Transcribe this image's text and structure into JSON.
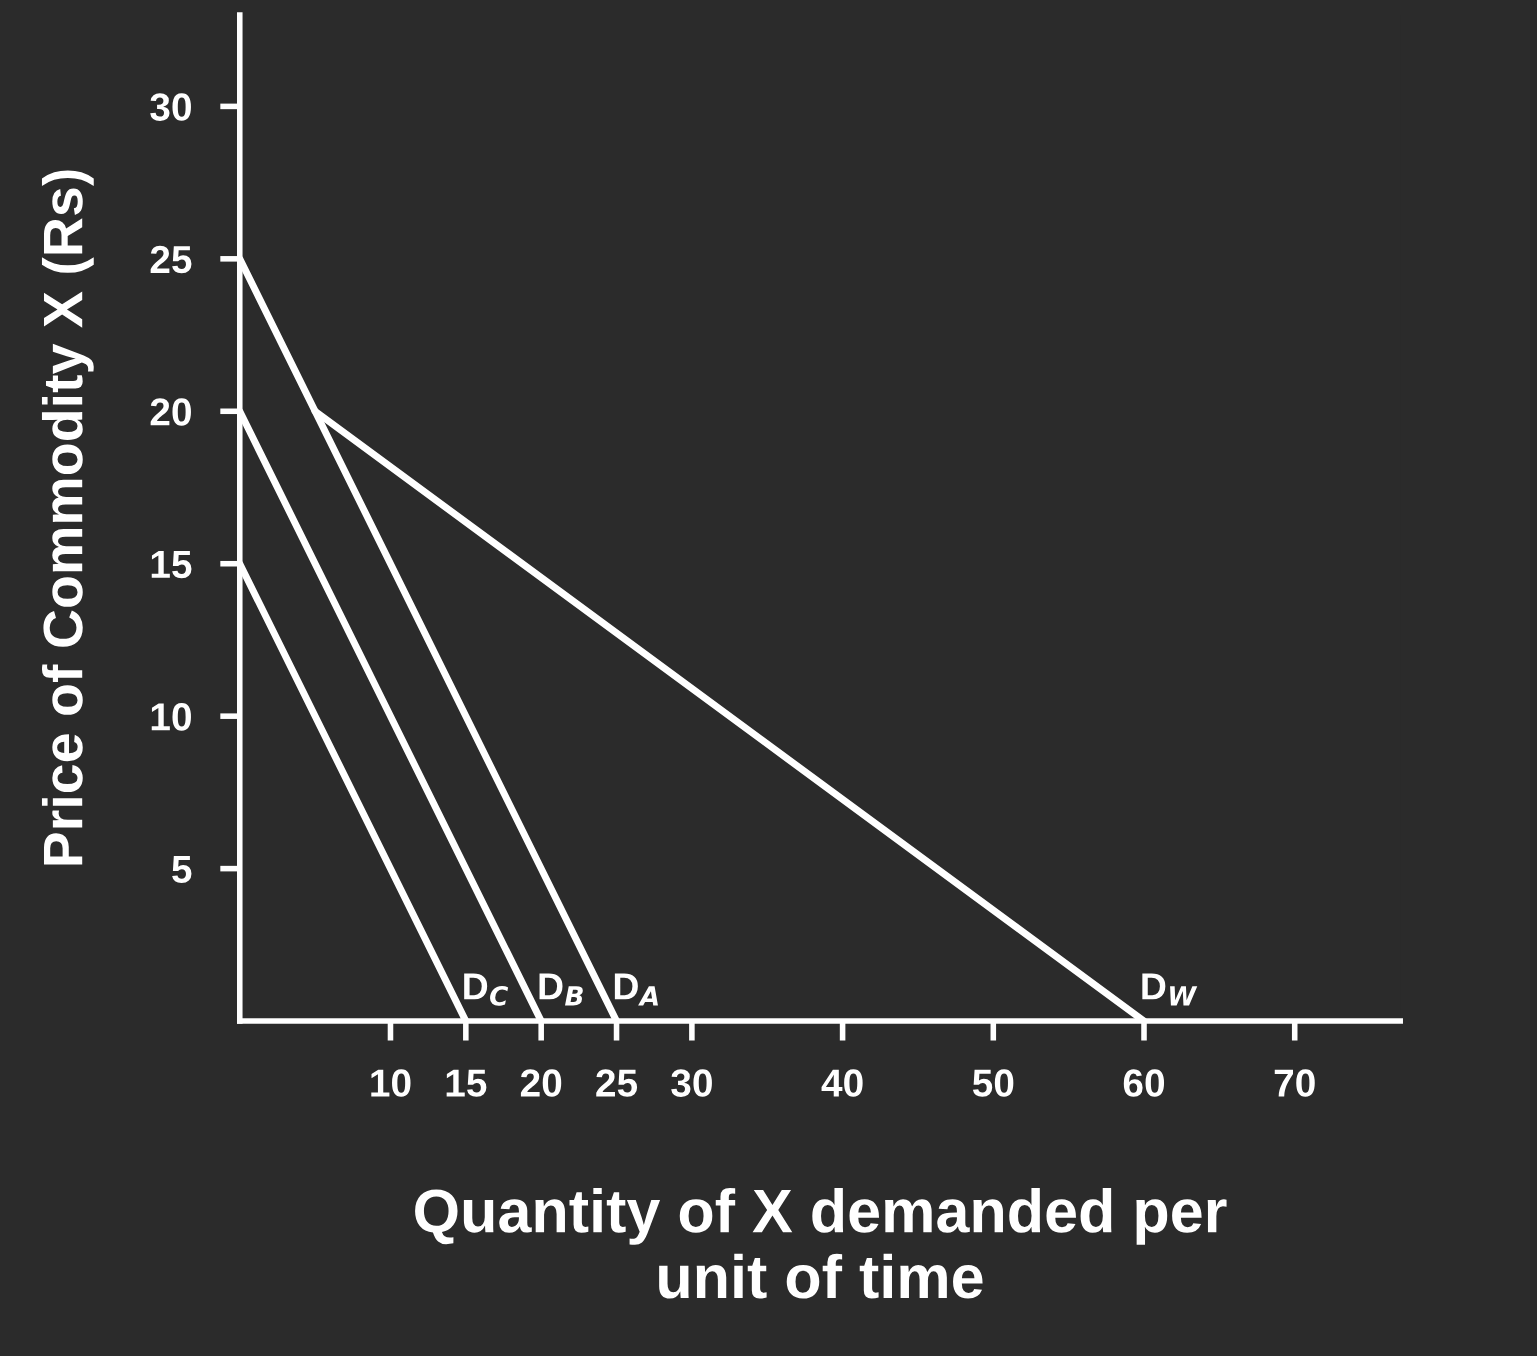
{
  "chart_data": {
    "type": "line",
    "xlabel": "Quantity of X demanded per\nunit of time",
    "ylabel": "Price of Commodity X (Rs)",
    "series": [
      {
        "name": "D$_{C}$",
        "color": "#ffffff",
        "x": [
          0,
          15
        ],
        "values": [
          15,
          0
        ]
      },
      {
        "name": "D$_{B}$",
        "color": "#ffffff",
        "x": [
          0,
          20
        ],
        "values": [
          20,
          0
        ]
      },
      {
        "name": "D$_{A}$",
        "color": "#ffffff",
        "x": [
          0,
          25
        ],
        "values": [
          25,
          0
        ]
      },
      {
        "name": "D$_{W}$",
        "color": "#ffffff",
        "x": [
          5,
          60
        ],
        "values": [
          20,
          0
        ]
      }
    ],
    "xlim": [
      0,
      77
    ],
    "ylim": [
      0,
      33
    ],
    "xticks": [
      10,
      15,
      20,
      25,
      30,
      40,
      50,
      60,
      70
    ],
    "yticks": [
      5,
      10,
      15,
      20,
      25,
      30
    ],
    "grid": false,
    "legend": false,
    "marker": "none",
    "line_style": "solid"
  }
}
